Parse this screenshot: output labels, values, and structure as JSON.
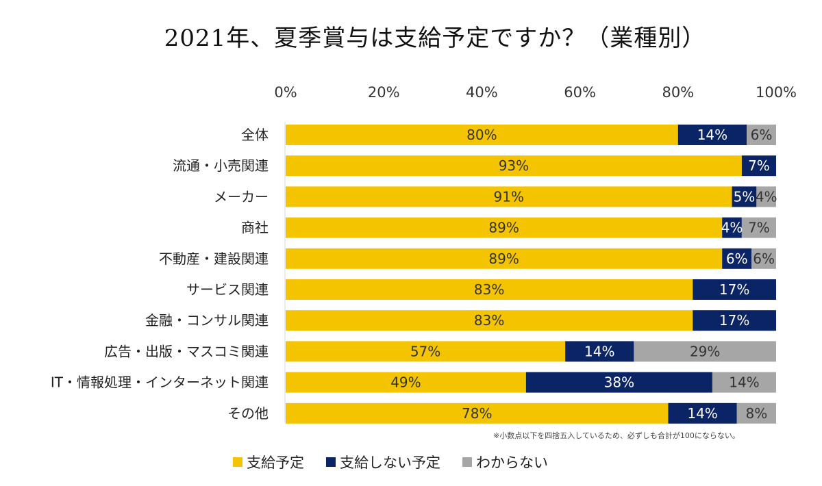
{
  "chart_data": {
    "type": "bar",
    "orientation": "horizontal",
    "stacked": true,
    "title": "2021年、夏季賞与は支給予定ですか？（業種別）",
    "xlabel": "",
    "ylabel": "",
    "xlim": [
      0,
      100
    ],
    "x_ticks": [
      "0%",
      "20%",
      "40%",
      "60%",
      "80%",
      "100%"
    ],
    "x_tick_position": "top",
    "grid": false,
    "legend_position": "bottom-left",
    "categories": [
      "全体",
      "流通・小売関連",
      "メーカー",
      "商社",
      "不動産・建設関連",
      "サービス関連",
      "金融・コンサル関連",
      "広告・出版・マスコミ関連",
      "IT・情報処理・インターネット関連",
      "その他"
    ],
    "series": [
      {
        "name": "支給予定",
        "color": "#F5C400",
        "label_color": "#333333",
        "values": [
          80,
          93,
          91,
          89,
          89,
          83,
          83,
          57,
          49,
          78
        ]
      },
      {
        "name": "支給しない予定",
        "color": "#0B2466",
        "label_color": "#FFFFFF",
        "values": [
          14,
          7,
          5,
          4,
          6,
          17,
          17,
          14,
          38,
          14
        ]
      },
      {
        "name": "わからない",
        "color": "#A6A6A6",
        "label_color": "#333333",
        "values": [
          6,
          0,
          4,
          7,
          6,
          0,
          0,
          29,
          14,
          8
        ]
      }
    ],
    "value_suffix": "%",
    "footnote": "※小数点以下を四捨五入しているため、必ずしも合計が100にならない。"
  }
}
